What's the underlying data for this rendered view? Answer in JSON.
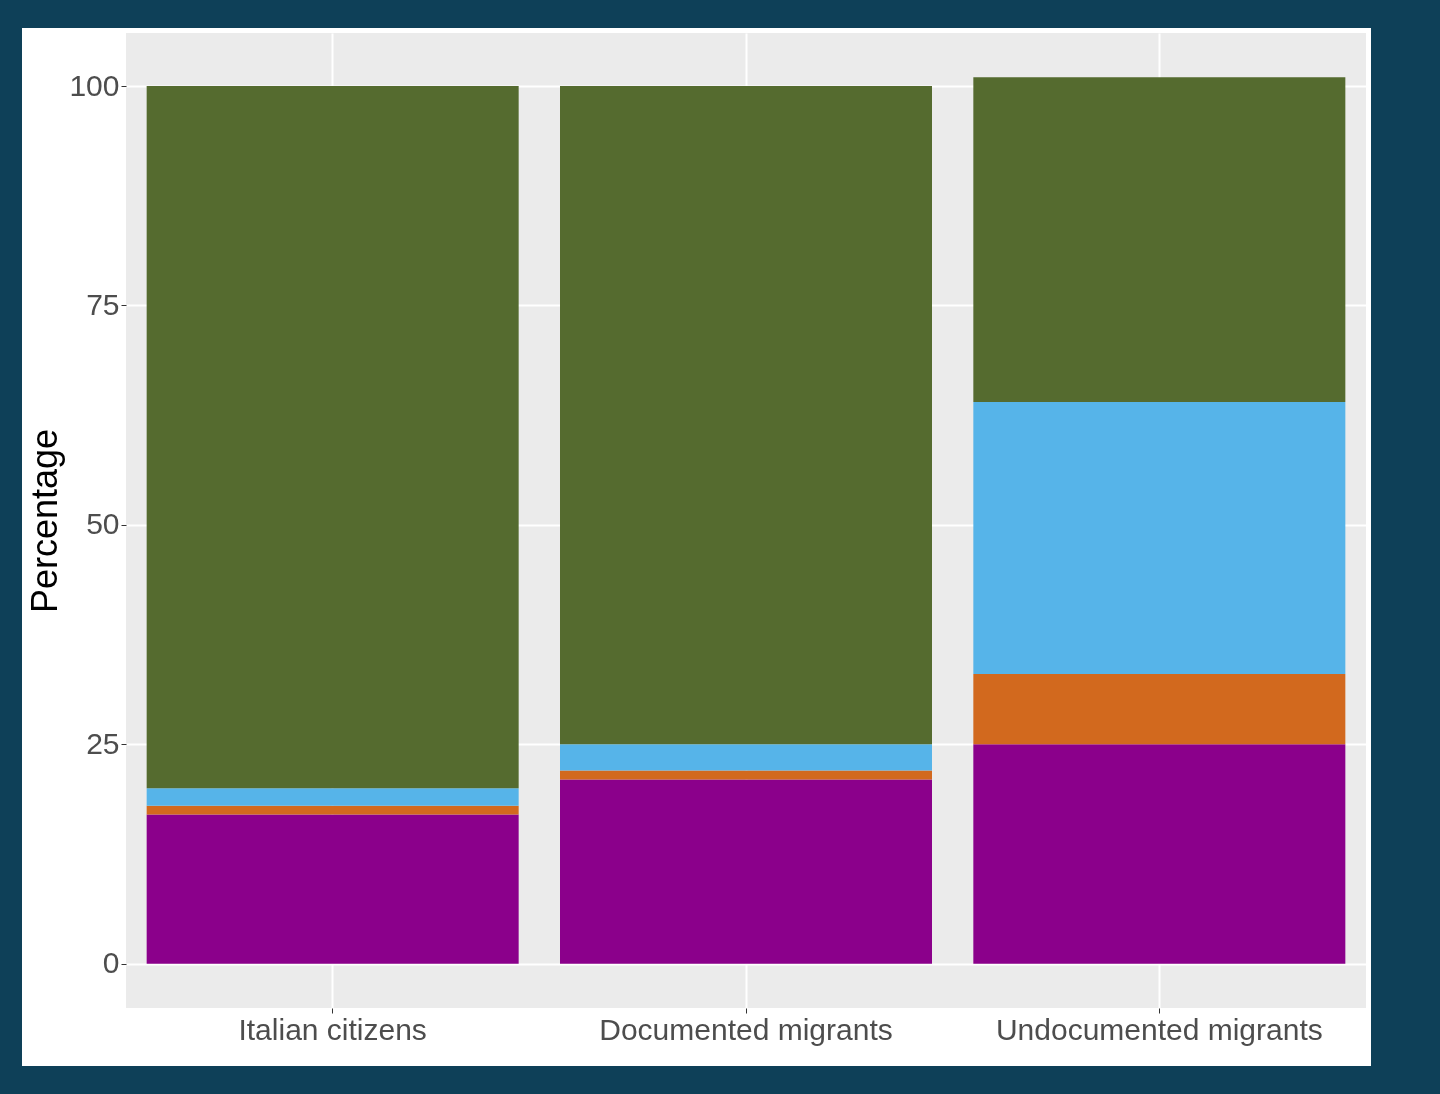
{
  "chart_data": {
    "type": "bar",
    "ylabel": "Percentage",
    "categories": [
      "Italian citizens",
      "Documented migrants",
      "Undocumented migrants"
    ],
    "stacked": true,
    "grid": true,
    "ylim": [
      -5.05,
      106.05
    ],
    "yticks": [
      0,
      25,
      50,
      75,
      100
    ],
    "series": [
      {
        "color": "#8b008b",
        "values": [
          17,
          21,
          25
        ]
      },
      {
        "color": "#d2691e",
        "values": [
          1,
          1,
          8
        ]
      },
      {
        "color": "#56b4e9",
        "values": [
          2,
          3,
          31
        ]
      },
      {
        "color": "#556b2f",
        "values": [
          80,
          75,
          37
        ]
      }
    ]
  }
}
